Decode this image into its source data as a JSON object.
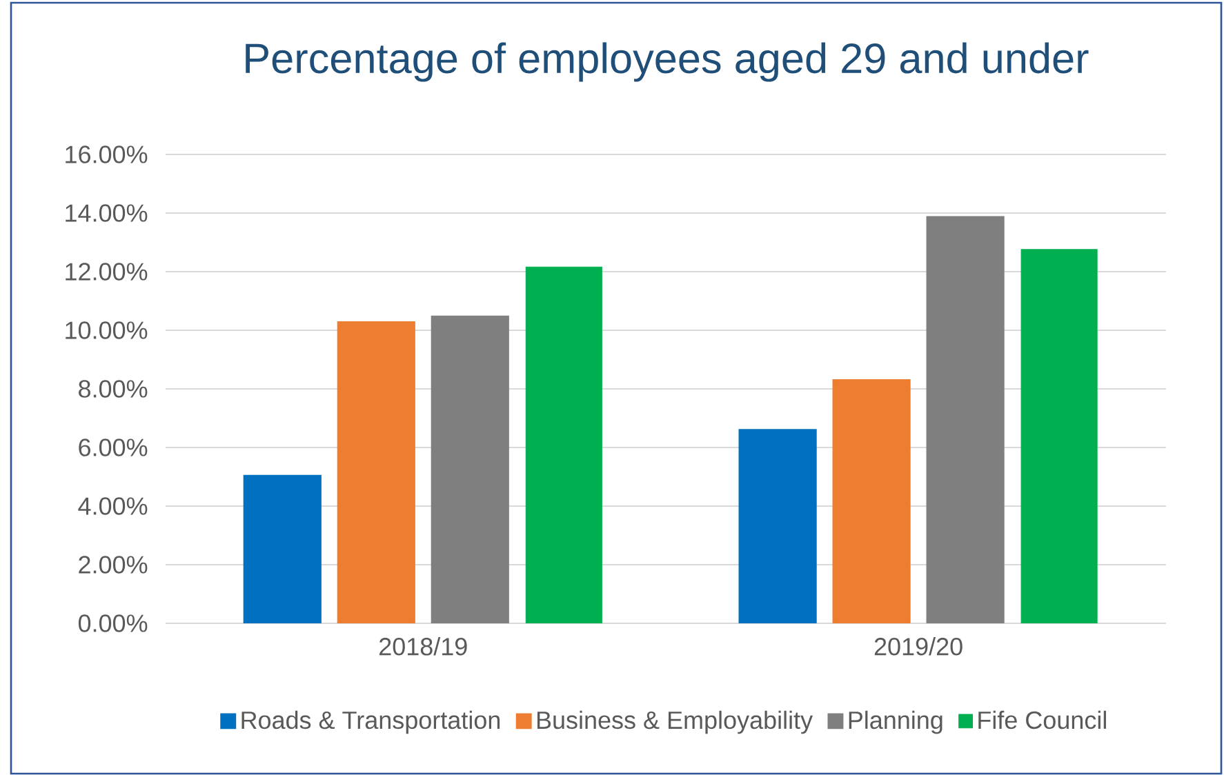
{
  "chart_data": {
    "type": "bar",
    "title": "Percentage of employees aged 29 and under",
    "categories": [
      "2018/19",
      "2019/20"
    ],
    "series": [
      {
        "name": "Roads & Transportation",
        "color": "#0070c0",
        "values": [
          5.03,
          6.59
        ]
      },
      {
        "name": "Business & Employability",
        "color": "#ed7d31",
        "values": [
          10.27,
          8.29
        ]
      },
      {
        "name": "Planning",
        "color": "#7f7f7f",
        "values": [
          10.46,
          13.86
        ]
      },
      {
        "name": "Fife Council",
        "color": "#00b050",
        "values": [
          12.16,
          12.76
        ]
      }
    ],
    "ylim": [
      0,
      16
    ],
    "yticks": [
      {
        "value": 0,
        "label": "0.00%"
      },
      {
        "value": 2,
        "label": "2.00%"
      },
      {
        "value": 4,
        "label": "4.00%"
      },
      {
        "value": 6,
        "label": "6.00%"
      },
      {
        "value": 8,
        "label": "8.00%"
      },
      {
        "value": 10,
        "label": "10.00%"
      },
      {
        "value": 12,
        "label": "12.00%"
      },
      {
        "value": 14,
        "label": "14.00%"
      },
      {
        "value": 16,
        "label": "16.00%"
      }
    ],
    "grid": "y",
    "legend": "bottom"
  }
}
